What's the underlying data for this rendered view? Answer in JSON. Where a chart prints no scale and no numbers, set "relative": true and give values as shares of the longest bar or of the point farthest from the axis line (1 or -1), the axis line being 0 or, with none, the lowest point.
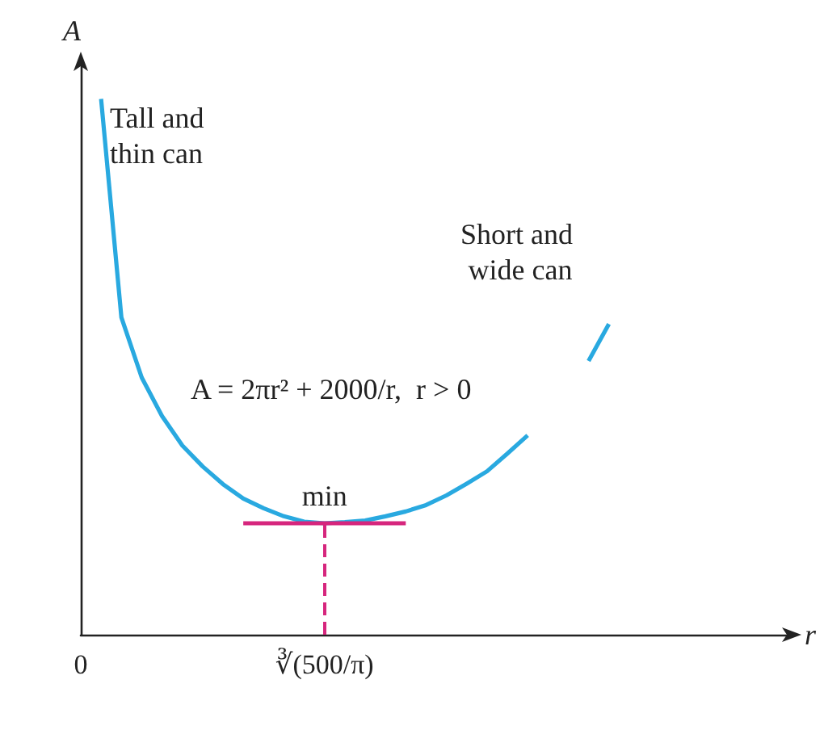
{
  "chart_data": {
    "type": "line",
    "relative": true,
    "xlabel": "r",
    "ylabel": "A",
    "categories": [
      "0",
      null,
      null,
      null,
      null,
      null,
      null,
      null,
      null,
      null,
      null,
      null,
      "∛(500/π)",
      null,
      null,
      null,
      null,
      null,
      null,
      null,
      null,
      null,
      null,
      null,
      null,
      null,
      null,
      null,
      null,
      null,
      null,
      null,
      null,
      null,
      null,
      null
    ],
    "series": [
      {
        "color": "#29a9e0",
        "values": [
          null,
          1.0,
          0.592,
          0.48,
          0.408,
          0.353,
          0.314,
          0.281,
          0.254,
          0.236,
          0.221,
          0.211,
          0.208,
          0.21,
          0.213,
          0.221,
          0.23,
          0.242,
          0.26,
          0.282,
          0.305,
          0.338,
          0.372,
          null,
          null,
          0.511,
          0.58,
          null,
          null,
          null,
          null,
          null,
          null,
          null,
          null,
          null
        ]
      },
      {
        "color": "#d6267d",
        "values": [
          null,
          null,
          null,
          null,
          null,
          null,
          null,
          null,
          0.208,
          null,
          null,
          null,
          null,
          null,
          null,
          null,
          0.208,
          null,
          null,
          null,
          null,
          null,
          null,
          null,
          null,
          null,
          null,
          null,
          null,
          null,
          null,
          null,
          null,
          null,
          null,
          null
        ]
      }
    ],
    "ref_lines": [
      {
        "axis": "x",
        "value": "∛(500/π)",
        "color": "#d6267d",
        "line_style": "dashed"
      }
    ],
    "annotations": [
      "Tall and thin can",
      "Short and wide can",
      "A = 2πr² + 2000/r,  r > 0",
      {
        "text": "min",
        "x": "∛(500/π)",
        "y": 0.208
      }
    ],
    "grid": false,
    "marker": "none"
  }
}
